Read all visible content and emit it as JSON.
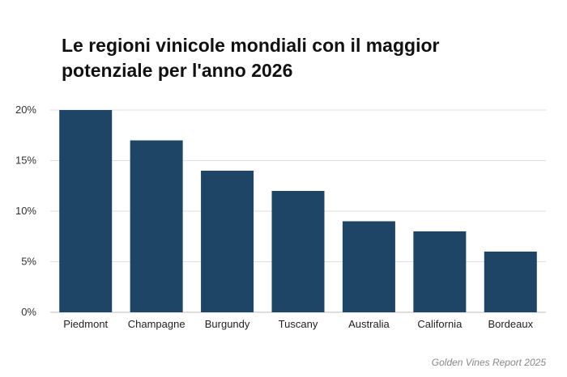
{
  "chart_data": {
    "type": "bar",
    "title": "Le regioni vinicole mondiali con il maggior potenziale per l'anno 2026",
    "categories": [
      "Piedmont",
      "Champagne",
      "Burgundy",
      "Tuscany",
      "Australia",
      "California",
      "Bordeaux"
    ],
    "values": [
      20,
      17,
      14,
      12,
      9,
      8,
      6
    ],
    "unit": "%",
    "xlabel": "",
    "ylabel": "",
    "ylim": [
      0,
      20
    ],
    "yticks": [
      0,
      5,
      10,
      15,
      20
    ],
    "ytick_labels": [
      "0%",
      "5%",
      "10%",
      "15%",
      "20%"
    ],
    "grid": true,
    "legend": "none",
    "bar_color": "#1e4566",
    "source": "Golden Vines Report 2025"
  }
}
